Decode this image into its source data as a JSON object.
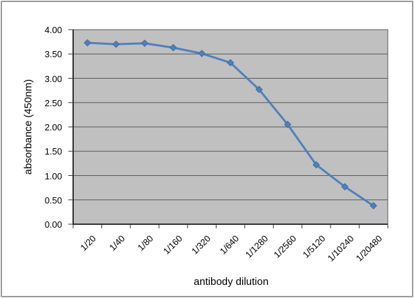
{
  "chart_data": {
    "type": "line",
    "title": "",
    "xlabel": "antibody dilution",
    "ylabel": "absorbance (450nm)",
    "categories": [
      "1/20",
      "1/40",
      "1/80",
      "1/160",
      "1/320",
      "1/640",
      "1/1280",
      "1/2560",
      "1/5120",
      "1/10240",
      "1/20480"
    ],
    "values": [
      3.73,
      3.7,
      3.72,
      3.63,
      3.51,
      3.32,
      2.77,
      2.05,
      1.22,
      0.77,
      0.38
    ],
    "ylim": [
      0,
      4
    ],
    "ytick_step": 0.5,
    "ytick_labels": [
      "0.00",
      "0.50",
      "1.00",
      "1.50",
      "2.00",
      "2.50",
      "3.00",
      "3.50",
      "4.00"
    ],
    "xtick_angle_deg": -45,
    "grid": "horizontal",
    "legend": "none",
    "marker": "diamond",
    "colors": {
      "line": "#4F81BD",
      "marker_fill": "#4F81BD",
      "marker_stroke": "#3D6B9E",
      "plot_background": "#C0C0C0",
      "gridline": "#595959",
      "axis": "#333333",
      "text": "#000000",
      "frame_border": "#999999",
      "page_background": "#FFFFFF"
    }
  }
}
